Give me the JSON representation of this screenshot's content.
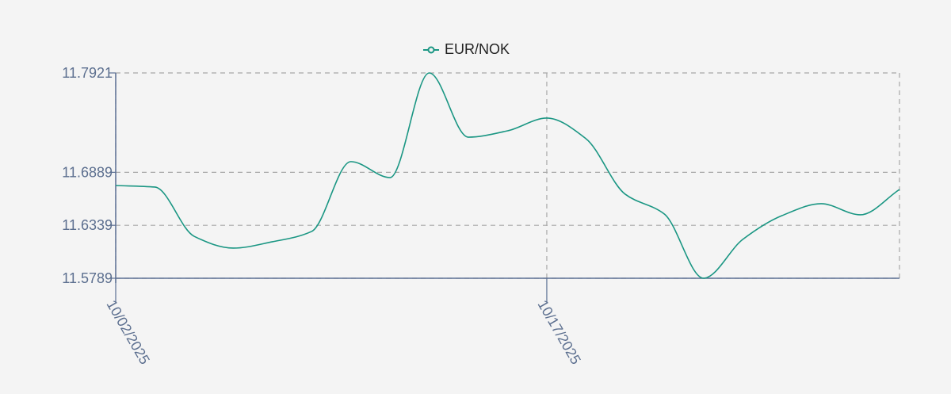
{
  "chart_data": {
    "type": "line",
    "title": "",
    "xlabel": "",
    "ylabel": "",
    "legend": {
      "position": "top-center",
      "entries": [
        "EUR/NOK"
      ]
    },
    "grid": true,
    "ylim": [
      11.5789,
      11.7921
    ],
    "y_ticks": [
      "11.7921",
      "11.6889",
      "11.6339",
      "11.5789"
    ],
    "x_ticks": [
      "10/02/2025",
      "10/17/2025"
    ],
    "series": [
      {
        "name": "EUR/NOK",
        "color": "#1a9683",
        "x": [
          "10/02/2025",
          "10/03/2025",
          "10/06/2025",
          "10/07/2025",
          "10/08/2025",
          "10/09/2025",
          "10/10/2025",
          "10/13/2025",
          "10/14/2025",
          "10/15/2025",
          "10/16/2025",
          "10/17/2025",
          "10/20/2025",
          "10/21/2025",
          "10/22/2025",
          "10/23/2025",
          "10/24/2025",
          "10/27/2025",
          "10/28/2025",
          "10/29/2025",
          "10/30/2025"
        ],
        "values": [
          11.6752,
          11.6736,
          11.6225,
          11.6102,
          11.6168,
          11.6275,
          11.7,
          11.6834,
          11.7921,
          11.7254,
          11.732,
          11.7452,
          11.7238,
          11.6662,
          11.6456,
          11.5789,
          11.6192,
          11.6439,
          11.6563,
          11.6448,
          11.6711
        ]
      }
    ]
  }
}
